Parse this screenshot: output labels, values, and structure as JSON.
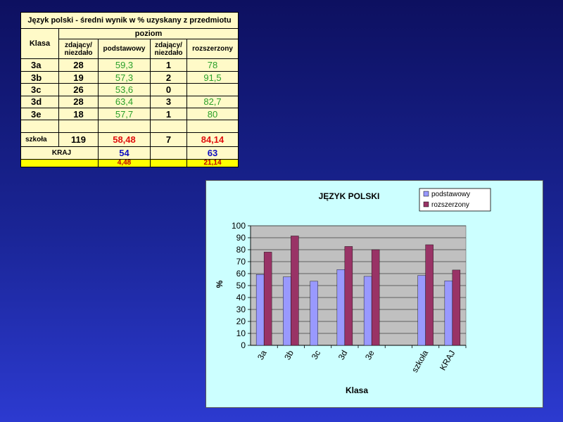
{
  "table": {
    "title": "Język polski - średni wynik w % uzyskany z przedmiotu",
    "headers": {
      "klasa": "Klasa",
      "poziom": "poziom",
      "zdajacy1": "zdający/ niezdało",
      "podstawowy": "podstawowy",
      "zdajacy2": "zdający/ niezdało",
      "rozszerzony": "rozszerzony"
    },
    "rows": [
      {
        "klasa": "3a",
        "zd1": "28",
        "podst": "59,3",
        "zd2": "1",
        "rozsz": "78"
      },
      {
        "klasa": "3b",
        "zd1": "19",
        "podst": "57,3",
        "zd2": "2",
        "rozsz": "91,5"
      },
      {
        "klasa": "3c",
        "zd1": "26",
        "podst": "53,6",
        "zd2": "0",
        "rozsz": ""
      },
      {
        "klasa": "3d",
        "zd1": "28",
        "podst": "63,4",
        "zd2": "3",
        "rozsz": "82,7"
      },
      {
        "klasa": "3e",
        "zd1": "18",
        "podst": "57,7",
        "zd2": "1",
        "rozsz": "80"
      }
    ],
    "szkola": {
      "label": "szkoła",
      "zd1": "119",
      "podst": "58,48",
      "zd2": "7",
      "rozsz": "84,14"
    },
    "kraj": {
      "label": "KRAJ",
      "podst": "54",
      "rozsz": "63"
    },
    "diff": {
      "podst": "4,48",
      "rozsz": "21,14"
    }
  },
  "colors": {
    "podstawowy": "#9999ff",
    "rozszerzony": "#993366",
    "plot_bg": "#c0c0c0",
    "chart_bg": "#ccffff"
  },
  "chart_data": {
    "type": "bar",
    "title": "JĘZYK POLSKI",
    "xlabel": "Klasa",
    "ylabel": "%",
    "ylim": [
      0,
      100
    ],
    "yticks": [
      0,
      10,
      20,
      30,
      40,
      50,
      60,
      70,
      80,
      90,
      100
    ],
    "grid": true,
    "legend": "top-right",
    "categories": [
      "3a",
      "3b",
      "3c",
      "3d",
      "3e",
      "",
      "szkoła",
      "KRAJ"
    ],
    "series": [
      {
        "name": "podstawowy",
        "values": [
          59.3,
          57.3,
          53.6,
          63.4,
          57.7,
          null,
          58.48,
          54
        ]
      },
      {
        "name": "rozszerzony",
        "values": [
          78,
          91.5,
          null,
          82.7,
          80,
          null,
          84.14,
          63
        ]
      }
    ]
  }
}
